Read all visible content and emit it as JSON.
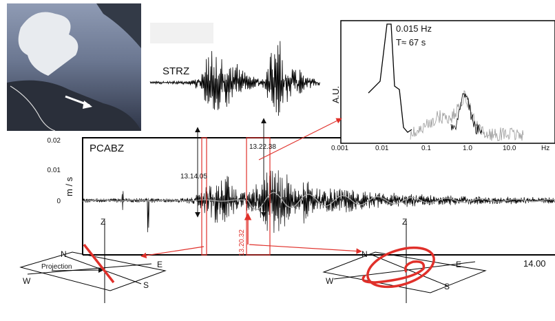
{
  "traces": {
    "top": "STRZ",
    "main": "PCABZ"
  },
  "main_axis": {
    "y_label": "m / s",
    "y_ticks": [
      "0.02",
      "0.01",
      "0"
    ],
    "x_end_label": "14.00"
  },
  "spectrum": {
    "y_label": "A.U.",
    "peak_frequency": "0.015  Hz",
    "period": "T≈ 67 s",
    "x_ticks": [
      "0.001",
      "0.01",
      "0.1",
      "1.0",
      "10.0"
    ],
    "x_unit": "Hz"
  },
  "times": [
    "13.14.05",
    "13.22.38",
    "13.20.32"
  ],
  "left_diagram": {
    "z": "Z",
    "n": "N",
    "e": "E",
    "w": "W",
    "s": "S",
    "projection": "Projection"
  },
  "right_diagram": {
    "z": "Z",
    "n": "N",
    "e": "E",
    "w": "W",
    "s": "S"
  }
}
